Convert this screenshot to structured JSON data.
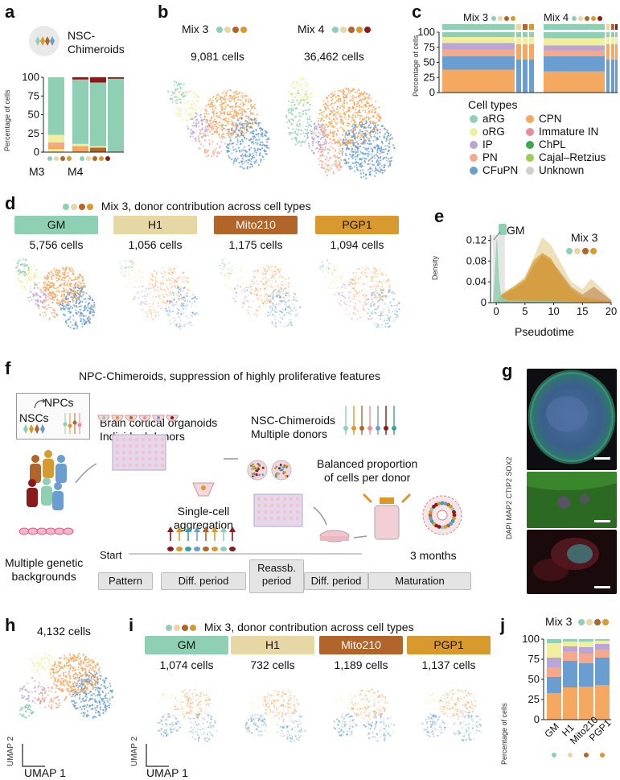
{
  "colors": {
    "GM": "#8fd0b4",
    "H1": "#e6d7a4",
    "Mito210": "#b1652a",
    "PGP1": "#d89a2e",
    "dark_red": "#8b1a1a",
    "aRG": "#8fd0b4",
    "oRG": "#f2eea0",
    "IP": "#b9a6d6",
    "PN": "#f4a98c",
    "CFuPN": "#6a9ed0",
    "CPN": "#f5a85f",
    "ImmatureIN": "#e88d9e",
    "ChPL": "#3aa84b",
    "CajalRetzius": "#9ccb55",
    "Unknown": "#cfcfcf"
  },
  "panels": {
    "a": "a",
    "b": "b",
    "c": "c",
    "d": "d",
    "e": "e",
    "f": "f",
    "g": "g",
    "h": "h",
    "i": "i",
    "j": "j"
  },
  "a": {
    "title": "NSC-\nChimeroids",
    "ylabel": "Percentage of cells",
    "yticks": [
      "100",
      "75",
      "50",
      "25",
      "0"
    ],
    "groups": [
      "M3",
      "M4"
    ]
  },
  "b": {
    "mix3": "Mix 3",
    "mix4": "Mix 4",
    "cells3": "9,081 cells",
    "cells4": "36,462 cells"
  },
  "c": {
    "mix3": "Mix 3",
    "mix4": "Mix 4",
    "ylabel": "Percentage of cells",
    "yticks": [
      "100",
      "75",
      "50",
      "25",
      "0"
    ],
    "legend_title": "Cell types",
    "legend_left": [
      "aRG",
      "oRG",
      "IP",
      "PN",
      "CFuPN"
    ],
    "legend_right": [
      "CPN",
      "Immature IN",
      "ChPL",
      "Cajal–Retzius",
      "Unknown"
    ]
  },
  "d": {
    "title": "Mix 3, donor contribution across cell types",
    "donors": [
      "GM",
      "H1",
      "Mito210",
      "PGP1"
    ],
    "cells": [
      "5,756 cells",
      "1,056 cells",
      "1,175 cells",
      "1,094 cells"
    ]
  },
  "e": {
    "ylabel": "Density",
    "xlabel": "Pseudotime",
    "tag": "GM",
    "mix": "Mix 3",
    "yticks": [
      "0.12",
      "0.08",
      "0.04",
      "0"
    ],
    "xticks": [
      "0",
      "5",
      "10",
      "15",
      "20"
    ]
  },
  "f": {
    "title": "NPC-Chimeroids, suppression of highly proliferative features",
    "npcs": "NPCs",
    "nscs": "NSCs",
    "organoids": "Brain cortical organoids\nIndividual donors",
    "nsc_chim": "NSC-Chimeroids\nMultiple donors",
    "balanced": "Balanced proportion\nof cells per donor",
    "single_cell": "Single-cell\naggregation",
    "multiple": "Multiple genetic\nbackgrounds",
    "start": "Start",
    "three_months": "3 months",
    "stages": [
      "Pattern",
      "Diff. period",
      "Reassb.\nperiod",
      "Diff. period",
      "Maturation"
    ]
  },
  "g": {
    "ylabel": "DAPI MAP2 CTIP2 SOX2"
  },
  "h": {
    "cells": "4,132 cells",
    "umap1": "UMAP 1",
    "umap2": "UMAP 2"
  },
  "i": {
    "title": "Mix 3, donor contribution across cell types",
    "donors": [
      "GM",
      "H1",
      "Mito210",
      "PGP1"
    ],
    "cells": [
      "1,074 cells",
      "732 cells",
      "1,189 cells",
      "1,137 cells"
    ],
    "umap1": "UMAP 1",
    "umap2": "UMAP 2"
  },
  "j": {
    "mix": "Mix 3",
    "ylabel": "Percentage of cells",
    "yticks": [
      "100",
      "75",
      "50",
      "25",
      "0"
    ],
    "xticks": [
      "GM",
      "H1",
      "Mito210",
      "PGP1"
    ]
  }
}
